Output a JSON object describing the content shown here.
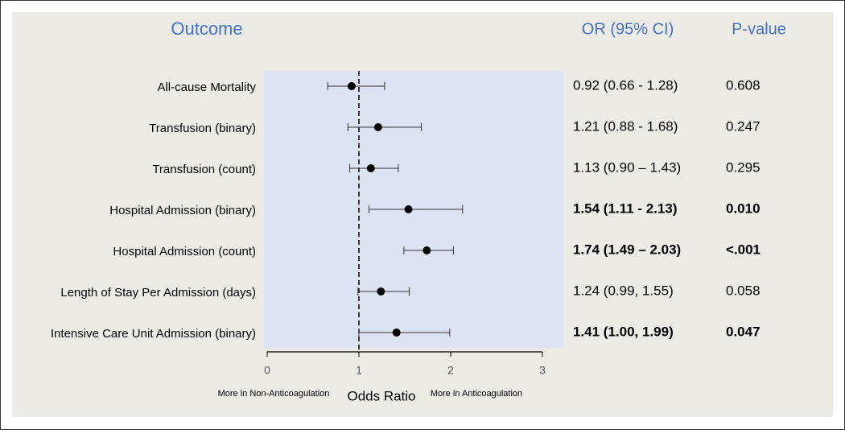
{
  "chart_data": {
    "type": "forest",
    "headers": {
      "outcome": "Outcome",
      "or": "OR (95% CI)",
      "p": "P-value"
    },
    "categories": [
      "All-cause Mortality",
      "Transfusion (binary)",
      "Transfusion (count)",
      "Hospital Admission (binary)",
      "Hospital Admission (count)",
      "Length of Stay Per Admission (days)",
      "Intensive Care Unit Admission (binary)"
    ],
    "values": [
      0.92,
      1.21,
      1.13,
      1.54,
      1.74,
      1.24,
      1.41
    ],
    "lower": [
      0.66,
      0.88,
      0.9,
      1.11,
      1.49,
      0.99,
      1.0
    ],
    "upper": [
      1.28,
      1.68,
      1.43,
      2.13,
      2.03,
      1.55,
      1.99
    ],
    "value_labels": [
      "0.92 (0.66 - 1.28)",
      "1.21 (0.88 - 1.68)",
      "1.13 (0.90 – 1.43)",
      "1.54 (1.11 - 2.13)",
      "1.74 (1.49 – 2.03)",
      "1.24 (0.99, 1.55)",
      "1.41 (1.00, 1.99)"
    ],
    "p_values": [
      "0.608",
      "0.247",
      "0.295",
      "0.010",
      "<.001",
      "0.058",
      "0.047"
    ],
    "bold": [
      false,
      false,
      false,
      true,
      true,
      false,
      true
    ],
    "xlabel": "Odds Ratio",
    "annotations": {
      "left": "More in Non-Anticoagulation",
      "right": "More in Anticoagulation"
    },
    "xlim": [
      0,
      3
    ],
    "xticks": [
      0,
      1,
      2,
      3
    ],
    "reference_line": 1,
    "color": "#000000",
    "panel_color": "#dce3f3",
    "header_color": "#4472c4"
  }
}
